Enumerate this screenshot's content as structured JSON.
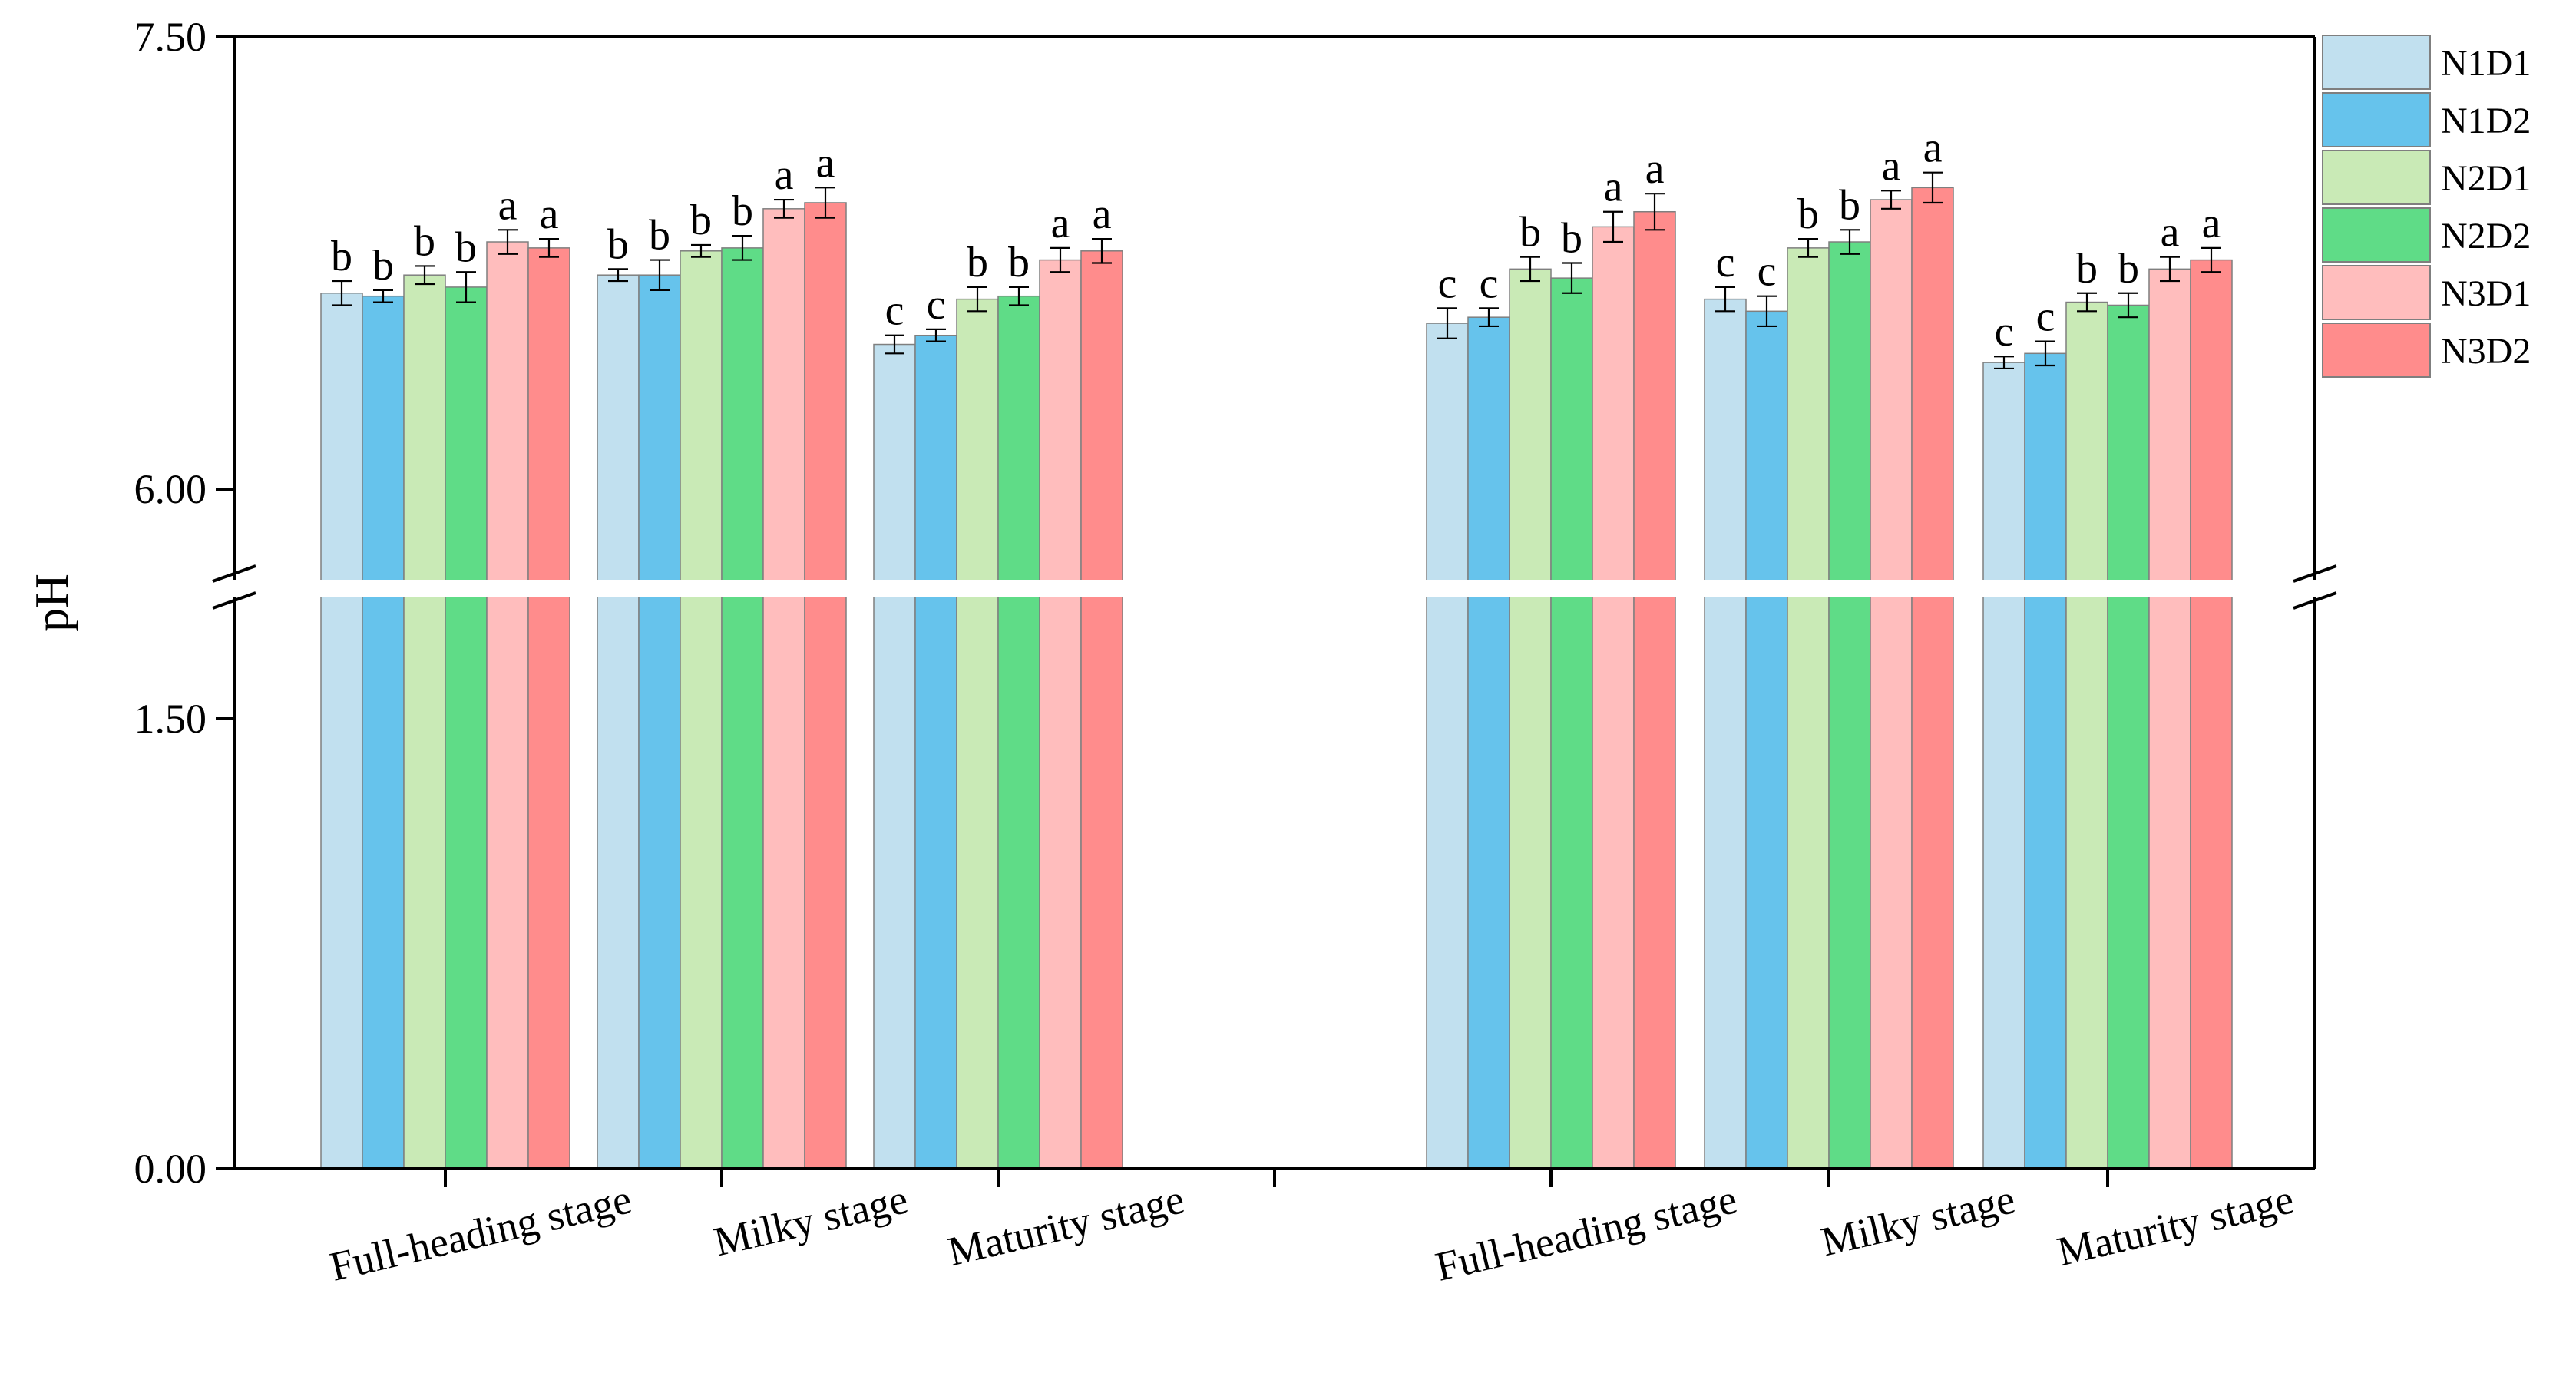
{
  "chart_data": {
    "type": "bar",
    "ylabel": "pH",
    "xlabel": "",
    "title": "",
    "y_break": {
      "lower": [
        0,
        1.5
      ],
      "upper": [
        6.0,
        7.5
      ]
    },
    "y_ticks": [
      "0.00",
      "1.50",
      "6.00",
      "7.50"
    ],
    "legend_placement": "top-right",
    "groups": [
      {
        "categories": [
          "Full-heading stage",
          "Milky stage",
          "Maturity stage"
        ]
      },
      {
        "categories": [
          "Full-heading stage",
          "Milky stage",
          "Maturity stage"
        ]
      }
    ],
    "series": [
      {
        "name": "N1D1",
        "color": "#c1e0ef",
        "values": [
          6.65,
          6.71,
          6.48,
          6.55,
          6.63,
          6.42
        ],
        "errors": [
          0.04,
          0.02,
          0.03,
          0.05,
          0.04,
          0.02
        ],
        "labels": [
          "b",
          "b",
          "c",
          "c",
          "c",
          "c"
        ]
      },
      {
        "name": "N1D2",
        "color": "#66c3ec",
        "values": [
          6.64,
          6.71,
          6.51,
          6.57,
          6.59,
          6.45
        ],
        "errors": [
          0.02,
          0.05,
          0.02,
          0.03,
          0.05,
          0.04
        ],
        "labels": [
          "b",
          "b",
          "c",
          "c",
          "c",
          "c"
        ]
      },
      {
        "name": "N2D1",
        "color": "#c9eab6",
        "values": [
          6.71,
          6.79,
          6.63,
          6.73,
          6.8,
          6.62
        ],
        "errors": [
          0.03,
          0.02,
          0.04,
          0.04,
          0.03,
          0.03
        ],
        "labels": [
          "b",
          "b",
          "b",
          "b",
          "b",
          "b"
        ]
      },
      {
        "name": "N2D2",
        "color": "#5fdc87",
        "values": [
          6.67,
          6.8,
          6.64,
          6.7,
          6.82,
          6.61
        ],
        "errors": [
          0.05,
          0.04,
          0.03,
          0.05,
          0.04,
          0.04
        ],
        "labels": [
          "b",
          "b",
          "b",
          "b",
          "b",
          "b"
        ]
      },
      {
        "name": "N3D1",
        "color": "#ffbdbd",
        "values": [
          6.82,
          6.93,
          6.76,
          6.87,
          6.96,
          6.73
        ],
        "errors": [
          0.04,
          0.03,
          0.04,
          0.05,
          0.03,
          0.04
        ],
        "labels": [
          "a",
          "a",
          "a",
          "a",
          "a",
          "a"
        ]
      },
      {
        "name": "N3D2",
        "color": "#ff8c8c",
        "values": [
          6.8,
          6.95,
          6.79,
          6.92,
          7.0,
          6.76
        ],
        "errors": [
          0.03,
          0.05,
          0.04,
          0.06,
          0.05,
          0.04
        ],
        "labels": [
          "a",
          "a",
          "a",
          "a",
          "a",
          "a"
        ]
      }
    ]
  }
}
